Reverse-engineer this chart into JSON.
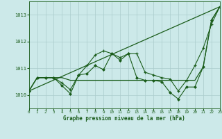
{
  "xlabel": "Graphe pression niveau de la mer (hPa)",
  "xlim": [
    0,
    23
  ],
  "ylim": [
    1009.5,
    1013.5
  ],
  "yticks": [
    1010,
    1011,
    1012,
    1013
  ],
  "xticks": [
    0,
    1,
    2,
    3,
    4,
    5,
    6,
    7,
    8,
    9,
    10,
    11,
    12,
    13,
    14,
    15,
    16,
    17,
    18,
    19,
    20,
    21,
    22,
    23
  ],
  "background_color": "#cce9e9",
  "grid_color": "#aacccc",
  "line_color": "#1a5c1a",
  "line_trend": {
    "x": [
      0,
      23
    ],
    "y": [
      1010.15,
      1013.3
    ]
  },
  "line_flat": {
    "x": [
      0,
      1,
      2,
      3,
      4,
      5,
      6,
      7,
      8,
      9,
      10,
      11,
      12,
      13,
      14,
      15,
      16,
      17,
      18,
      19,
      20,
      21,
      22,
      23
    ],
    "y": [
      1010.15,
      1010.65,
      1010.65,
      1010.65,
      1010.65,
      1010.55,
      1010.55,
      1010.55,
      1010.55,
      1010.55,
      1010.55,
      1010.55,
      1010.55,
      1010.55,
      1010.55,
      1010.55,
      1010.55,
      1010.55,
      1010.55,
      1010.55,
      1010.55,
      1011.05,
      1012.8,
      1013.3
    ]
  },
  "line_plus": {
    "x": [
      0,
      1,
      2,
      3,
      4,
      5,
      6,
      7,
      8,
      9,
      10,
      11,
      12,
      13,
      14,
      15,
      16,
      17,
      18,
      19,
      20,
      21,
      22,
      23
    ],
    "y": [
      1010.15,
      1010.65,
      1010.65,
      1010.65,
      1010.45,
      1010.2,
      1010.75,
      1011.1,
      1011.5,
      1011.65,
      1011.55,
      1011.4,
      1011.55,
      1011.55,
      1010.85,
      1010.75,
      1010.65,
      1010.6,
      1010.15,
      1010.55,
      1011.1,
      1011.75,
      1012.65,
      1013.3
    ]
  },
  "line_diamond": {
    "x": [
      0,
      1,
      2,
      3,
      4,
      5,
      6,
      7,
      8,
      9,
      10,
      11,
      12,
      13,
      14,
      15,
      16,
      17,
      18,
      19,
      20,
      21,
      22,
      23
    ],
    "y": [
      1010.15,
      1010.65,
      1010.65,
      1010.65,
      1010.35,
      1010.05,
      1010.75,
      1010.8,
      1011.1,
      1010.95,
      1011.55,
      1011.3,
      1011.55,
      1010.65,
      1010.55,
      1010.55,
      1010.5,
      1010.1,
      1009.85,
      1010.3,
      1010.3,
      1011.05,
      1012.8,
      1013.3
    ]
  }
}
